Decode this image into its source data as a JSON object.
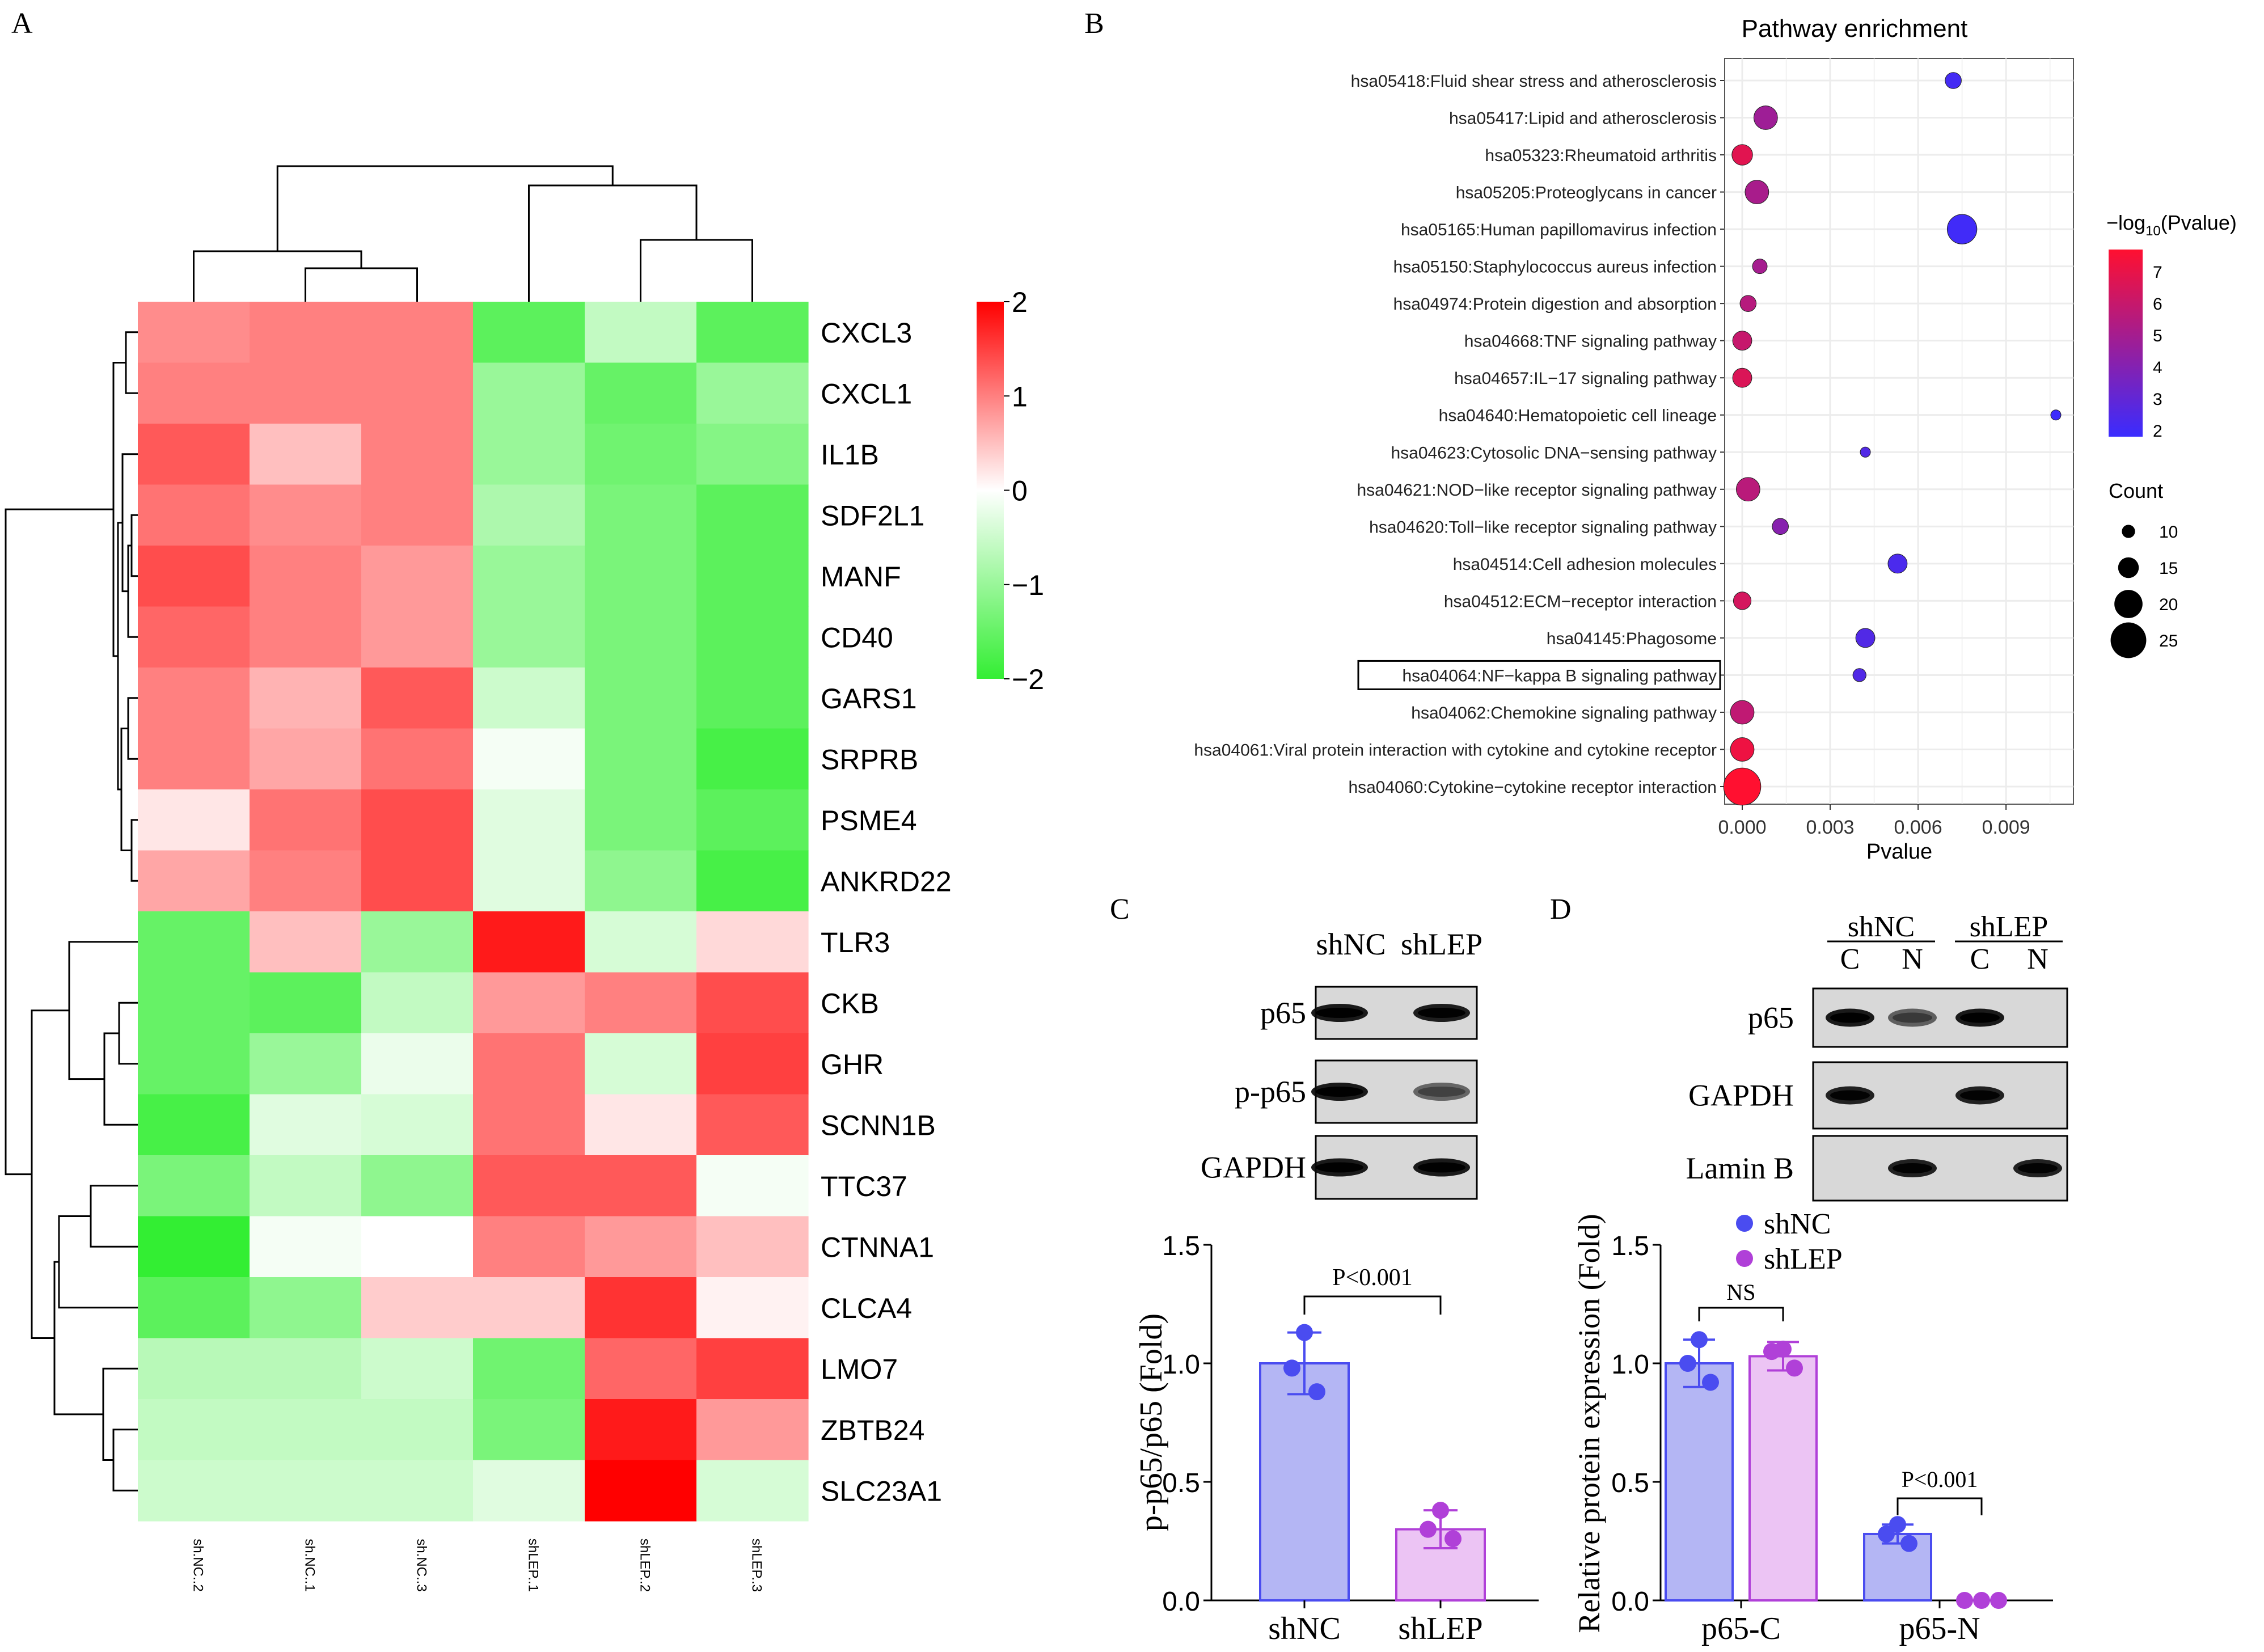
{
  "chart_data": [
    {
      "panel": "A",
      "type": "heatmap",
      "panel_label": "A",
      "columns": [
        "sh.NC..2",
        "sh.NC..1",
        "sh.NC..3",
        "shLEP..1",
        "shLEP..2",
        "shLEP..3"
      ],
      "rows": [
        "CXCL3",
        "CXCL1",
        "IL1B",
        "SDF2L1",
        "MANF",
        "CD40",
        "GARS1",
        "SRPRB",
        "PSME4",
        "ANKRD22",
        "TLR3",
        "CKB",
        "GHR",
        "SCNN1B",
        "TTC37",
        "CTNNA1",
        "CLCA4",
        "LMO7",
        "ZBTB24",
        "SLC23A1"
      ],
      "values": [
        [
          0.9,
          1.0,
          1.0,
          -1.6,
          -0.6,
          -1.6
        ],
        [
          1.0,
          1.0,
          1.0,
          -1.0,
          -1.5,
          -1.0
        ],
        [
          1.3,
          0.5,
          1.0,
          -1.0,
          -1.4,
          -1.2
        ],
        [
          1.1,
          0.9,
          1.0,
          -0.8,
          -1.3,
          -1.6
        ],
        [
          1.4,
          1.0,
          0.8,
          -1.0,
          -1.3,
          -1.6
        ],
        [
          1.2,
          1.0,
          0.8,
          -1.0,
          -1.3,
          -1.6
        ],
        [
          1.0,
          0.6,
          1.3,
          -0.5,
          -1.3,
          -1.6
        ],
        [
          1.0,
          0.7,
          1.1,
          -0.1,
          -1.3,
          -1.8
        ],
        [
          0.2,
          1.1,
          1.4,
          -0.3,
          -1.3,
          -1.6
        ],
        [
          0.7,
          1.0,
          1.4,
          -0.3,
          -1.1,
          -1.8
        ],
        [
          -1.5,
          0.5,
          -1.0,
          1.8,
          -0.4,
          0.3
        ],
        [
          -1.5,
          -1.6,
          -0.6,
          0.8,
          1.0,
          1.4
        ],
        [
          -1.5,
          -1.0,
          -0.2,
          1.1,
          -0.4,
          1.5
        ],
        [
          -1.8,
          -0.3,
          -0.4,
          1.1,
          0.2,
          1.3
        ],
        [
          -1.3,
          -0.6,
          -1.1,
          1.3,
          1.3,
          -0.1
        ],
        [
          -2.0,
          -0.1,
          0.0,
          1.0,
          0.8,
          0.5
        ],
        [
          -1.6,
          -1.1,
          0.4,
          0.4,
          1.6,
          0.1
        ],
        [
          -0.7,
          -0.7,
          -0.5,
          -1.4,
          1.2,
          1.5
        ],
        [
          -0.6,
          -0.6,
          -0.6,
          -1.3,
          1.8,
          0.8
        ],
        [
          -0.5,
          -0.5,
          -0.5,
          -0.3,
          2.0,
          -0.4
        ]
      ],
      "scale_ticks": [
        "2",
        "1",
        "0",
        "−1",
        "−2"
      ],
      "scale_range": [
        -2,
        2
      ],
      "colors": {
        "low": "#33ee33",
        "mid": "#ffffff",
        "high": "#ff0000"
      }
    },
    {
      "panel": "B",
      "type": "scatter",
      "panel_label": "B",
      "title": "Pathway enrichment",
      "xlabel": "Pvalue",
      "xticks": [
        "0.000",
        "0.003",
        "0.006",
        "0.009"
      ],
      "xlim": [
        -0.0006,
        0.0113
      ],
      "legend_color_title_main": "−log",
      "legend_color_title_sub": "10",
      "legend_color_title_end": "(Pvalue)",
      "legend_color_ticks": [
        "7",
        "6",
        "5",
        "4",
        "3",
        "2"
      ],
      "legend_color_range": [
        1.8,
        7.7
      ],
      "legend_size_title": "Count",
      "legend_size_labels": [
        "10",
        "15",
        "20",
        "25"
      ],
      "highlighted_term": "hsa04064:NF−kappa B signaling pathway",
      "colors": {
        "low": "#3a2cff",
        "high": "#ff1030"
      },
      "points": [
        {
          "term": "hsa05418:Fluid shear stress and atherosclerosis",
          "pvalue": 0.0072,
          "log10p": 2.1,
          "count": 12
        },
        {
          "term": "hsa05417:Lipid and atherosclerosis",
          "pvalue": 0.0008,
          "log10p": 4.8,
          "count": 17
        },
        {
          "term": "hsa05323:Rheumatoid arthritis",
          "pvalue": 0.0,
          "log10p": 6.8,
          "count": 15
        },
        {
          "term": "hsa05205:Proteoglycans in cancer",
          "pvalue": 0.0005,
          "log10p": 5.1,
          "count": 17
        },
        {
          "term": "hsa05165:Human papillomavirus infection",
          "pvalue": 0.0075,
          "log10p": 2.0,
          "count": 21
        },
        {
          "term": "hsa05150:Staphylococcus aureus infection",
          "pvalue": 0.0006,
          "log10p": 5.0,
          "count": 11
        },
        {
          "term": "hsa04974:Protein digestion and absorption",
          "pvalue": 0.0002,
          "log10p": 5.5,
          "count": 12
        },
        {
          "term": "hsa04668:TNF signaling pathway",
          "pvalue": 0.0,
          "log10p": 6.0,
          "count": 14
        },
        {
          "term": "hsa04657:IL−17 signaling pathway",
          "pvalue": 0.0,
          "log10p": 6.6,
          "count": 14
        },
        {
          "term": "hsa04640:Hematopoietic cell lineage",
          "pvalue": 0.0107,
          "log10p": 1.9,
          "count": 8
        },
        {
          "term": "hsa04623:Cytosolic DNA−sensing pathway",
          "pvalue": 0.0042,
          "log10p": 2.5,
          "count": 8
        },
        {
          "term": "hsa04621:NOD−like receptor signaling pathway",
          "pvalue": 0.0002,
          "log10p": 5.6,
          "count": 17
        },
        {
          "term": "hsa04620:Toll−like receptor signaling pathway",
          "pvalue": 0.0013,
          "log10p": 4.1,
          "count": 12
        },
        {
          "term": "hsa04514:Cell adhesion molecules",
          "pvalue": 0.0053,
          "log10p": 2.3,
          "count": 14
        },
        {
          "term": "hsa04512:ECM−receptor interaction",
          "pvalue": 0.0,
          "log10p": 6.4,
          "count": 13
        },
        {
          "term": "hsa04145:Phagosome",
          "pvalue": 0.0042,
          "log10p": 2.5,
          "count": 14
        },
        {
          "term": "hsa04064:NF−kappa B signaling pathway",
          "pvalue": 0.004,
          "log10p": 2.5,
          "count": 10
        },
        {
          "term": "hsa04062:Chemokine signaling pathway",
          "pvalue": 0.0,
          "log10p": 5.8,
          "count": 17
        },
        {
          "term": "hsa04061:Viral protein interaction with cytokine and cytokine receptor",
          "pvalue": 0.0,
          "log10p": 7.2,
          "count": 17
        },
        {
          "term": "hsa04060:Cytokine−cytokine receptor interaction",
          "pvalue": 0.0,
          "log10p": 7.7,
          "count": 26
        }
      ]
    },
    {
      "panel": "C",
      "type": "bar",
      "panel_label": "C",
      "blot": {
        "groups": [
          "shNC",
          "shLEP"
        ],
        "rows": [
          {
            "label": "p65",
            "intensities": [
              0.95,
              0.92
            ]
          },
          {
            "label": "p-p65",
            "intensities": [
              0.95,
              0.35
            ]
          },
          {
            "label": "GAPDH",
            "intensities": [
              0.95,
              0.95
            ]
          }
        ]
      },
      "categories": [
        "shNC",
        "shLEP"
      ],
      "values": [
        1.0,
        0.3
      ],
      "errors": [
        0.13,
        0.08
      ],
      "points": [
        [
          1.13,
          0.98,
          0.88
        ],
        [
          0.38,
          0.3,
          0.26
        ]
      ],
      "ylabel": "p-p65/p65 (Fold)",
      "ylim": [
        0,
        1.5
      ],
      "yticks": [
        "0.0",
        "0.5",
        "1.0",
        "1.5"
      ],
      "annotation": "P<0.001",
      "colors": {
        "shNC_fill": "#b4b6f4",
        "shNC_edge": "#4a4cf0",
        "shLEP_fill": "#ecc4f4",
        "shLEP_edge": "#b040d8"
      }
    },
    {
      "panel": "D",
      "type": "bar",
      "panel_label": "D",
      "blot": {
        "groups": [
          "shNC",
          "shLEP"
        ],
        "subgroups": [
          "C",
          "N",
          "C",
          "N"
        ],
        "rows": [
          {
            "label": "p65",
            "intensities": [
              0.95,
              0.4,
              0.95,
              0.0
            ]
          },
          {
            "label": "GAPDH",
            "intensities": [
              0.9,
              0.0,
              0.9,
              0.0
            ]
          },
          {
            "label": "Lamin B",
            "intensities": [
              0.0,
              0.9,
              0.0,
              0.9
            ]
          }
        ]
      },
      "categories": [
        "p65-C",
        "p65-N"
      ],
      "series": [
        {
          "name": "shNC",
          "values": [
            1.0,
            0.28
          ],
          "errors": [
            0.1,
            0.04
          ],
          "points": [
            [
              1.1,
              1.0,
              0.92
            ],
            [
              0.32,
              0.28,
              0.24
            ]
          ]
        },
        {
          "name": "shLEP",
          "values": [
            1.03,
            0.0
          ],
          "errors": [
            0.06,
            0.0
          ],
          "points": [
            [
              1.06,
              1.05,
              0.98
            ],
            [
              0.0,
              0.0,
              0.0
            ]
          ]
        }
      ],
      "ylabel": "Relative protein expression (Fold)",
      "ylim": [
        0,
        1.5
      ],
      "yticks": [
        "0.0",
        "0.5",
        "1.0",
        "1.5"
      ],
      "annotations": [
        "NS",
        "P<0.001"
      ],
      "legend": [
        "shNC",
        "shLEP"
      ],
      "colors": {
        "shNC_fill": "#b4b6f4",
        "shNC_edge": "#4a4cf0",
        "shLEP_fill": "#ecc4f4",
        "shLEP_edge": "#b040d8"
      }
    }
  ]
}
